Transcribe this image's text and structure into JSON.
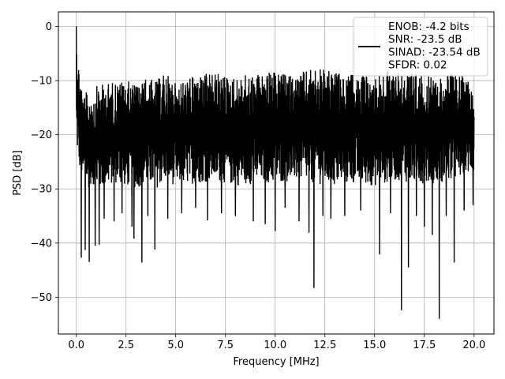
{
  "chart_data": {
    "type": "line",
    "title": "",
    "xlabel": "Frequency [MHz]",
    "ylabel": "PSD [dB]",
    "xlim": [
      -0.9,
      21.0
    ],
    "ylim": [
      -56.8,
      2.7
    ],
    "xticks": [
      0.0,
      2.5,
      5.0,
      7.5,
      10.0,
      12.5,
      15.0,
      17.5,
      20.0
    ],
    "xtick_labels": [
      "0.0",
      "2.5",
      "5.0",
      "7.5",
      "10.0",
      "12.5",
      "15.0",
      "17.5",
      "20.0"
    ],
    "yticks": [
      0,
      -10,
      -20,
      -30,
      -40,
      -50
    ],
    "ytick_labels": [
      "0",
      "−10",
      "−20",
      "−30",
      "−40",
      "−50"
    ],
    "grid": true,
    "legend_position": "top-right",
    "series": [
      {
        "name": "ENOB: -4.2 bits\nSNR: -23.5 dB\nSINAD: -23.54 dB\nSFDR: 0.02",
        "color": "#000000",
        "envelope": {
          "x": [
            0.0,
            0.02,
            0.1,
            0.2,
            0.35,
            0.5,
            0.6,
            0.75,
            0.9,
            1.0,
            1.5,
            2.0,
            2.5,
            3.0,
            3.5,
            4.0,
            4.5,
            5.0,
            6.0,
            7.0,
            8.0,
            9.0,
            10.0,
            11.0,
            12.0,
            13.0,
            14.0,
            15.0,
            16.0,
            17.0,
            18.0,
            19.0,
            20.0
          ],
          "upper": [
            0.0,
            -3.0,
            -6.0,
            -8.5,
            -13.0,
            -12.0,
            -13.5,
            -11.5,
            -12.5,
            -11.0,
            -10.5,
            -10.0,
            -10.0,
            -10.5,
            -9.5,
            -10.0,
            -8.5,
            -10.5,
            -9.0,
            -8.5,
            -9.5,
            -8.5,
            -8.5,
            -9.0,
            -7.5,
            -8.5,
            -9.0,
            -9.0,
            -7.5,
            -8.5,
            -9.5,
            -8.5,
            -10.0
          ],
          "lower": [
            -21.0,
            -22.0,
            -25.0,
            -27.0,
            -28.5,
            -29.0,
            -30.0,
            -29.0,
            -30.0,
            -30.5,
            -29.5,
            -29.0,
            -29.5,
            -30.0,
            -29.0,
            -30.0,
            -28.5,
            -29.5,
            -29.0,
            -28.5,
            -29.5,
            -29.0,
            -29.0,
            -28.5,
            -29.0,
            -29.5,
            -29.0,
            -29.5,
            -28.5,
            -29.0,
            -29.0,
            -28.5,
            -27.0
          ]
        },
        "dips": [
          {
            "x": 0.25,
            "y": -42.7
          },
          {
            "x": 0.45,
            "y": -41.3
          },
          {
            "x": 0.65,
            "y": -43.5
          },
          {
            "x": 0.95,
            "y": -40.5
          },
          {
            "x": 1.15,
            "y": -40.3
          },
          {
            "x": 1.4,
            "y": -35.5
          },
          {
            "x": 1.9,
            "y": -36.0
          },
          {
            "x": 2.3,
            "y": -34.5
          },
          {
            "x": 2.8,
            "y": -37.0
          },
          {
            "x": 2.9,
            "y": -39.2
          },
          {
            "x": 3.3,
            "y": -43.6
          },
          {
            "x": 3.6,
            "y": -35.0
          },
          {
            "x": 3.95,
            "y": -41.2
          },
          {
            "x": 4.6,
            "y": -35.5
          },
          {
            "x": 5.3,
            "y": -34.5
          },
          {
            "x": 6.0,
            "y": -33.5
          },
          {
            "x": 6.6,
            "y": -35.8
          },
          {
            "x": 7.3,
            "y": -34.5
          },
          {
            "x": 8.0,
            "y": -35.0
          },
          {
            "x": 8.9,
            "y": -36.0
          },
          {
            "x": 9.5,
            "y": -36.5
          },
          {
            "x": 10.0,
            "y": -37.8
          },
          {
            "x": 10.5,
            "y": -33.5
          },
          {
            "x": 11.2,
            "y": -36.0
          },
          {
            "x": 11.7,
            "y": -38.1
          },
          {
            "x": 11.95,
            "y": -48.3
          },
          {
            "x": 12.4,
            "y": -35.0
          },
          {
            "x": 12.8,
            "y": -35.5
          },
          {
            "x": 13.5,
            "y": -35.0
          },
          {
            "x": 14.3,
            "y": -34.0
          },
          {
            "x": 15.25,
            "y": -42.1
          },
          {
            "x": 15.8,
            "y": -34.5
          },
          {
            "x": 16.35,
            "y": -52.4
          },
          {
            "x": 16.7,
            "y": -44.5
          },
          {
            "x": 17.1,
            "y": -35.0
          },
          {
            "x": 17.5,
            "y": -37.0
          },
          {
            "x": 17.9,
            "y": -38.5
          },
          {
            "x": 18.25,
            "y": -54.0
          },
          {
            "x": 18.6,
            "y": -35.0
          },
          {
            "x": 19.0,
            "y": -43.6
          },
          {
            "x": 19.5,
            "y": -34.0
          },
          {
            "x": 19.95,
            "y": -33.0
          }
        ]
      }
    ]
  }
}
